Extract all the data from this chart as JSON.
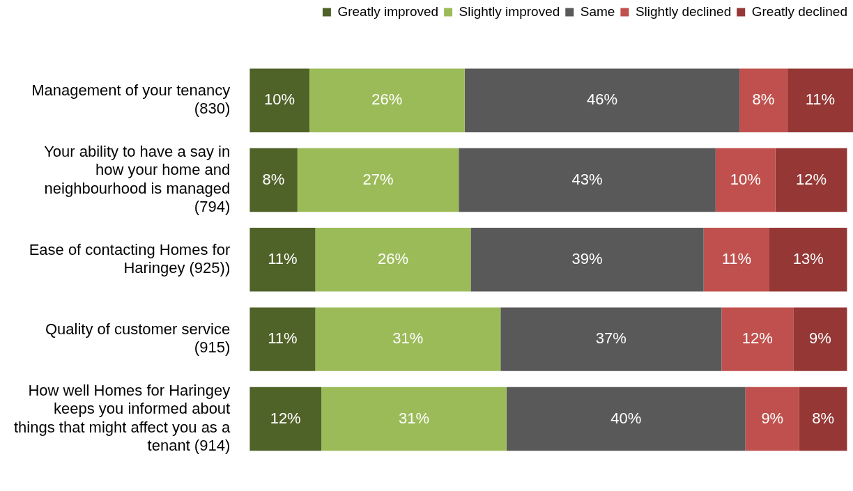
{
  "chart_data": {
    "type": "bar",
    "orientation": "horizontal",
    "stacked": true,
    "legend": "top right",
    "tick_labels": "y",
    "categories": [
      "Management of your tenancy (830)",
      "Your ability to have a say in how your home and neighbourhood is managed (794)",
      "Ease of contacting Homes for Haringey (925))",
      "Quality of customer service (915)",
      "How well Homes for Haringey keeps you informed about things that might affect you as a tenant (914)"
    ],
    "series": [
      {
        "name": "Greatly improved",
        "color": "#4f6228",
        "values": [
          10,
          8,
          11,
          11,
          12
        ],
        "value_labels": [
          "10%",
          "8%",
          "11%",
          "11%",
          "12%"
        ]
      },
      {
        "name": "Slightly improved",
        "color": "#9bbb59",
        "values": [
          26,
          27,
          26,
          31,
          31
        ],
        "value_labels": [
          "26%",
          "27%",
          "26%",
          "31%",
          "31%"
        ]
      },
      {
        "name": "Same",
        "color": "#595959",
        "values": [
          46,
          43,
          39,
          37,
          40
        ],
        "value_labels": [
          "46%",
          "43%",
          "39%",
          "37%",
          "40%"
        ]
      },
      {
        "name": "Slightly declined",
        "color": "#c0504d",
        "values": [
          8,
          10,
          11,
          12,
          9
        ],
        "value_labels": [
          "8%",
          "10%",
          "11%",
          "12%",
          "9%"
        ]
      },
      {
        "name": "Greatly declined",
        "color": "#953735",
        "values": [
          11,
          12,
          13,
          9,
          8
        ],
        "value_labels": [
          "11%",
          "12%",
          "13%",
          "9%",
          "8%"
        ]
      }
    ]
  }
}
